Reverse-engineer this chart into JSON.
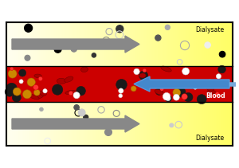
{
  "bg_color": "#ffffff",
  "border_color": "#222222",
  "blood_color": "#cc0000",
  "fig_width": 3.0,
  "fig_height": 2.11,
  "dpi": 100,
  "dialysate_top_label": "Dialysate",
  "dialysate_bottom_label": "Dialysate",
  "blood_label": "Blood",
  "arrow_gray_color": "#888888",
  "arrow_blue_color": "#4488cc",
  "arrow_blue_edge": "#5599dd",
  "grad_left": "#fffef0",
  "grad_right": "#ffff66"
}
